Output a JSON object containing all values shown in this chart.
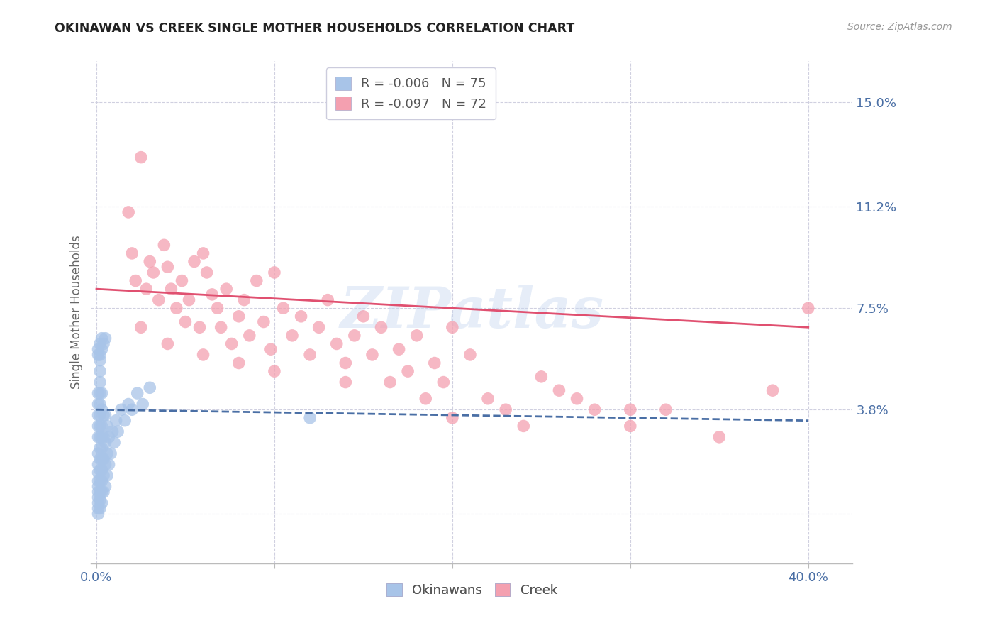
{
  "title": "OKINAWAN VS CREEK SINGLE MOTHER HOUSEHOLDS CORRELATION CHART",
  "source": "Source: ZipAtlas.com",
  "ylabel": "Single Mother Households",
  "watermark": "ZIPatlas",
  "yticks": [
    0.0,
    0.038,
    0.075,
    0.112,
    0.15
  ],
  "ytick_labels": [
    "",
    "3.8%",
    "7.5%",
    "11.2%",
    "15.0%"
  ],
  "xticks": [
    0.0,
    0.1,
    0.2,
    0.3,
    0.4
  ],
  "xtick_labels": [
    "0.0%",
    "",
    "",
    "",
    "40.0%"
  ],
  "xlim": [
    -0.003,
    0.425
  ],
  "ylim": [
    -0.018,
    0.165
  ],
  "legend": {
    "okinawan_r": "-0.006",
    "okinawan_n": "75",
    "creek_r": "-0.097",
    "creek_n": "72"
  },
  "okinawan_color": "#a8c4e8",
  "creek_color": "#f4a0b0",
  "trend_okinawan_color": "#4a6fa5",
  "trend_creek_color": "#e05070",
  "background_color": "#ffffff",
  "grid_color": "#d0d0e0",
  "title_color": "#222222",
  "tick_label_color": "#4a6fa5",
  "ylabel_color": "#666666",
  "okinawan_x": [
    0.001,
    0.001,
    0.001,
    0.001,
    0.001,
    0.001,
    0.001,
    0.001,
    0.001,
    0.001,
    0.001,
    0.001,
    0.001,
    0.001,
    0.001,
    0.002,
    0.002,
    0.002,
    0.002,
    0.002,
    0.002,
    0.002,
    0.002,
    0.002,
    0.002,
    0.002,
    0.002,
    0.002,
    0.002,
    0.002,
    0.003,
    0.003,
    0.003,
    0.003,
    0.003,
    0.003,
    0.003,
    0.003,
    0.003,
    0.003,
    0.004,
    0.004,
    0.004,
    0.004,
    0.004,
    0.005,
    0.005,
    0.005,
    0.005,
    0.006,
    0.006,
    0.006,
    0.007,
    0.007,
    0.008,
    0.009,
    0.01,
    0.011,
    0.012,
    0.014,
    0.016,
    0.018,
    0.02,
    0.023,
    0.026,
    0.03,
    0.001,
    0.001,
    0.002,
    0.002,
    0.003,
    0.003,
    0.004,
    0.005,
    0.12
  ],
  "okinawan_y": [
    0.0,
    0.002,
    0.004,
    0.006,
    0.008,
    0.01,
    0.012,
    0.015,
    0.018,
    0.022,
    0.028,
    0.032,
    0.036,
    0.04,
    0.044,
    0.002,
    0.005,
    0.008,
    0.012,
    0.016,
    0.02,
    0.024,
    0.028,
    0.032,
    0.036,
    0.04,
    0.044,
    0.048,
    0.052,
    0.056,
    0.004,
    0.008,
    0.012,
    0.016,
    0.02,
    0.024,
    0.028,
    0.032,
    0.038,
    0.044,
    0.008,
    0.014,
    0.02,
    0.028,
    0.036,
    0.01,
    0.018,
    0.026,
    0.036,
    0.014,
    0.022,
    0.032,
    0.018,
    0.028,
    0.022,
    0.03,
    0.026,
    0.034,
    0.03,
    0.038,
    0.034,
    0.04,
    0.038,
    0.044,
    0.04,
    0.046,
    0.058,
    0.06,
    0.058,
    0.062,
    0.06,
    0.064,
    0.062,
    0.064,
    0.035
  ],
  "creek_x": [
    0.018,
    0.02,
    0.022,
    0.025,
    0.028,
    0.03,
    0.032,
    0.035,
    0.038,
    0.04,
    0.042,
    0.045,
    0.048,
    0.05,
    0.052,
    0.055,
    0.058,
    0.06,
    0.062,
    0.065,
    0.068,
    0.07,
    0.073,
    0.076,
    0.08,
    0.083,
    0.086,
    0.09,
    0.094,
    0.098,
    0.1,
    0.105,
    0.11,
    0.115,
    0.12,
    0.125,
    0.13,
    0.135,
    0.14,
    0.145,
    0.15,
    0.155,
    0.16,
    0.165,
    0.17,
    0.175,
    0.18,
    0.185,
    0.19,
    0.195,
    0.2,
    0.21,
    0.22,
    0.23,
    0.24,
    0.25,
    0.26,
    0.27,
    0.28,
    0.3,
    0.32,
    0.35,
    0.38,
    0.4,
    0.025,
    0.04,
    0.06,
    0.08,
    0.1,
    0.14,
    0.2,
    0.3
  ],
  "creek_y": [
    0.11,
    0.095,
    0.085,
    0.13,
    0.082,
    0.092,
    0.088,
    0.078,
    0.098,
    0.09,
    0.082,
    0.075,
    0.085,
    0.07,
    0.078,
    0.092,
    0.068,
    0.095,
    0.088,
    0.08,
    0.075,
    0.068,
    0.082,
    0.062,
    0.072,
    0.078,
    0.065,
    0.085,
    0.07,
    0.06,
    0.088,
    0.075,
    0.065,
    0.072,
    0.058,
    0.068,
    0.078,
    0.062,
    0.055,
    0.065,
    0.072,
    0.058,
    0.068,
    0.048,
    0.06,
    0.052,
    0.065,
    0.042,
    0.055,
    0.048,
    0.068,
    0.058,
    0.042,
    0.038,
    0.032,
    0.05,
    0.045,
    0.042,
    0.038,
    0.032,
    0.038,
    0.028,
    0.045,
    0.075,
    0.068,
    0.062,
    0.058,
    0.055,
    0.052,
    0.048,
    0.035,
    0.038
  ]
}
